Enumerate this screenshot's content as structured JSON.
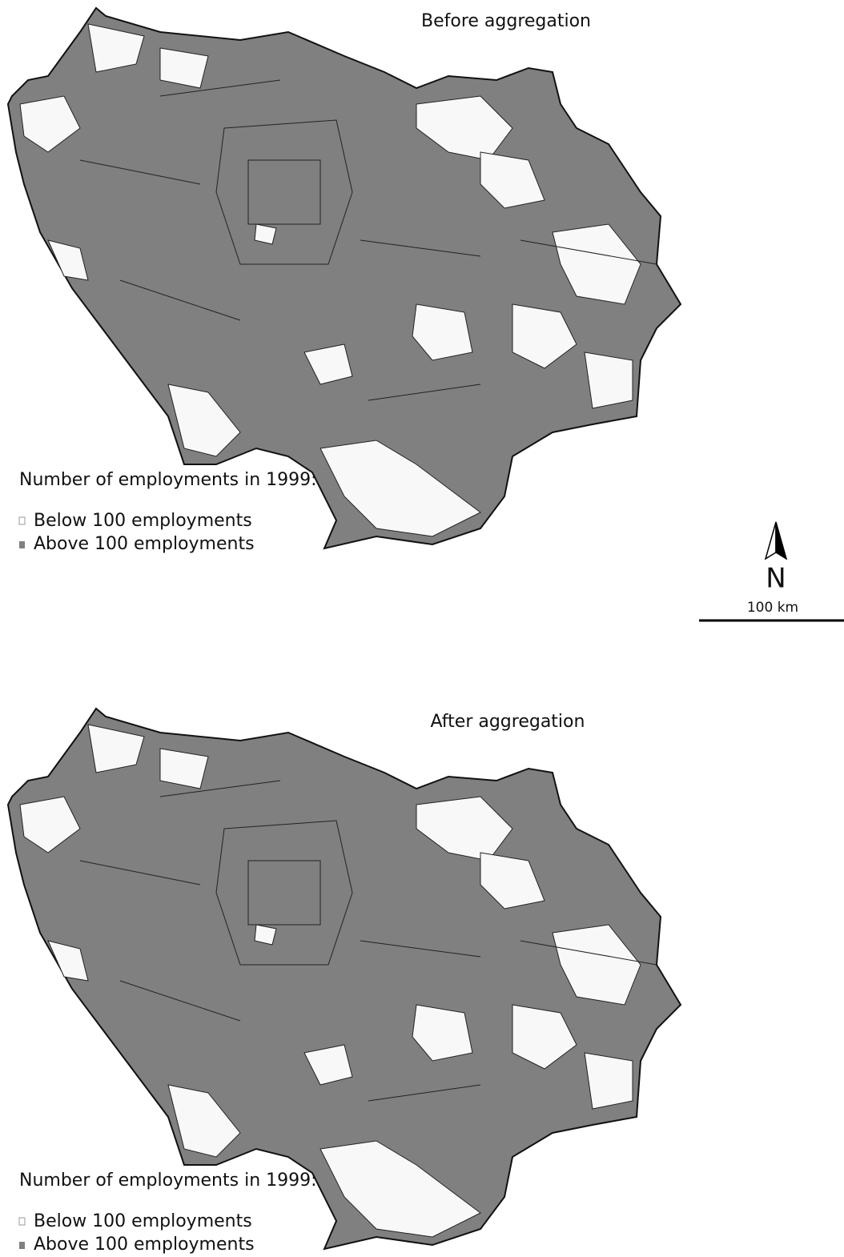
{
  "maps": [
    {
      "title": "Before aggregation",
      "legend": {
        "title": "Number of employments in 1999:",
        "items": [
          "Below 100 employments",
          "Above 100 employments"
        ]
      }
    },
    {
      "title": "After aggregation",
      "legend": {
        "title": "Number of employments in 1999:",
        "items": [
          "Below 100 employments",
          "Above 100 employments"
        ]
      }
    }
  ],
  "north_arrow": {
    "label": "N"
  },
  "scale_bar": {
    "label": "100 km"
  }
}
